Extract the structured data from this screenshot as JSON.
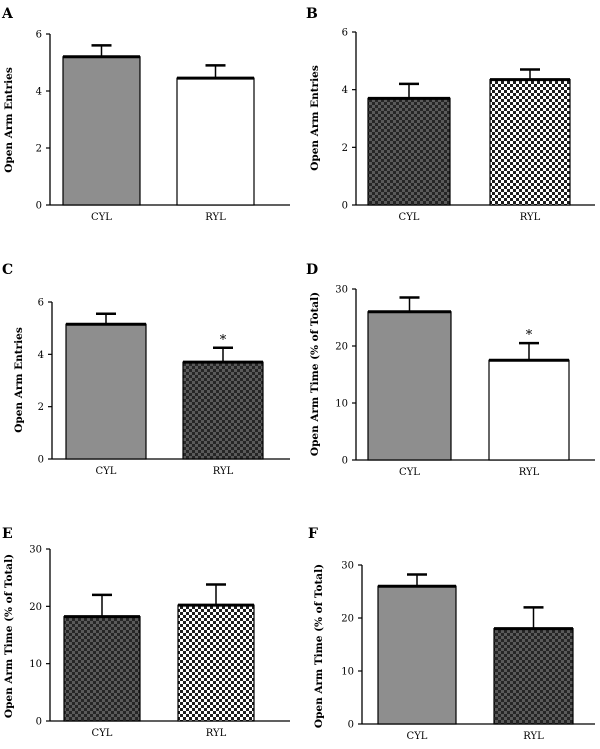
{
  "chart_data": [
    {
      "panel": "A",
      "type": "bar",
      "ylabel": "Open Arm Entries",
      "categories": [
        "CYL",
        "RYL"
      ],
      "values": [
        5.2,
        4.45
      ],
      "errors": [
        0.4,
        0.45
      ],
      "ylim": [
        0,
        6
      ],
      "yticks": [
        0,
        2,
        4,
        6
      ],
      "fills": [
        "gray",
        "white"
      ],
      "annotations": [
        "",
        ""
      ]
    },
    {
      "panel": "B",
      "type": "bar",
      "ylabel": "Open Arm Entries",
      "categories": [
        "CYL",
        "RYL"
      ],
      "values": [
        3.7,
        4.35
      ],
      "errors": [
        0.5,
        0.35
      ],
      "ylim": [
        0,
        6
      ],
      "yticks": [
        0,
        2,
        4,
        6
      ],
      "fills": [
        "darkcheck",
        "lightcheck"
      ],
      "annotations": [
        "",
        ""
      ]
    },
    {
      "panel": "C",
      "type": "bar",
      "ylabel": "Open Arm Entries",
      "categories": [
        "CYL",
        "RYL"
      ],
      "values": [
        5.15,
        3.7
      ],
      "errors": [
        0.4,
        0.55
      ],
      "ylim": [
        0,
        6
      ],
      "yticks": [
        0,
        2,
        4,
        6
      ],
      "fills": [
        "gray",
        "darkcheck"
      ],
      "annotations": [
        "",
        "*"
      ]
    },
    {
      "panel": "D",
      "type": "bar",
      "ylabel": "Open Arm Time (% of Total)",
      "categories": [
        "CYL",
        "RYL"
      ],
      "values": [
        26,
        17.5
      ],
      "errors": [
        2.5,
        3
      ],
      "ylim": [
        0,
        30
      ],
      "yticks": [
        0,
        10,
        20,
        30
      ],
      "fills": [
        "gray",
        "white"
      ],
      "annotations": [
        "",
        "*"
      ]
    },
    {
      "panel": "E",
      "type": "bar",
      "ylabel": "Open Arm Time (% of Total)",
      "categories": [
        "CYL",
        "RYL"
      ],
      "values": [
        18.2,
        20.2
      ],
      "errors": [
        3.8,
        3.6
      ],
      "ylim": [
        0,
        30
      ],
      "yticks": [
        0,
        10,
        20,
        30
      ],
      "fills": [
        "darkcheck",
        "lightcheck"
      ],
      "annotations": [
        "",
        ""
      ]
    },
    {
      "panel": "F",
      "type": "bar",
      "ylabel": "Open Arm Time (% of Total)",
      "categories": [
        "CYL",
        "RYL"
      ],
      "values": [
        26,
        18
      ],
      "errors": [
        2.2,
        4
      ],
      "ylim": [
        0,
        30
      ],
      "yticks": [
        0,
        10,
        20,
        30
      ],
      "fills": [
        "gray",
        "darkcheck"
      ],
      "annotations": [
        "",
        ""
      ]
    }
  ]
}
